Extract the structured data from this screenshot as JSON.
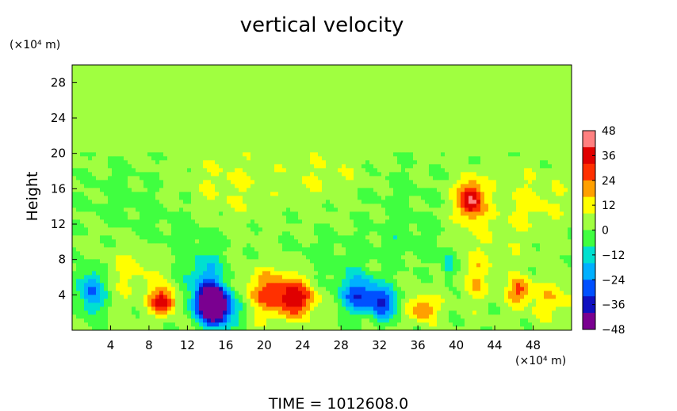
{
  "chart_data": {
    "type": "heatmap",
    "title": "vertical velocity",
    "ylabel": "Height",
    "x_unit": "(×10⁴ m)",
    "y_unit": "(×10⁴ m)",
    "xlim": [
      0,
      52
    ],
    "ylim": [
      0,
      30
    ],
    "x_ticks": [
      "4",
      "8",
      "12",
      "16",
      "20",
      "24",
      "28",
      "32",
      "36",
      "40",
      "44",
      "48"
    ],
    "y_ticks": [
      "4",
      "8",
      "12",
      "16",
      "20",
      "24",
      "28"
    ],
    "colorbar": {
      "range": [
        -48,
        48
      ],
      "ticks": [
        "48",
        "36",
        "24",
        "12",
        "0",
        "−12",
        "−24",
        "−36",
        "−48"
      ],
      "colors": [
        "#7a0090",
        "#1010c0",
        "#0050ff",
        "#00b0ff",
        "#00e0d0",
        "#40ff40",
        "#a0ff40",
        "#ffff00",
        "#ffa000",
        "#ff3000",
        "#e00000",
        "#ff8080"
      ]
    },
    "background_value": 2,
    "features": [
      {
        "x": 2.0,
        "y": 4.5,
        "sx": 1.0,
        "sy": 1.8,
        "v": -28
      },
      {
        "x": 9.5,
        "y": 3.3,
        "sx": 1.0,
        "sy": 1.0,
        "v": 34
      },
      {
        "x": 13.8,
        "y": 5.5,
        "sx": 1.6,
        "sy": 2.5,
        "v": -20
      },
      {
        "x": 14.5,
        "y": 3.0,
        "sx": 1.0,
        "sy": 1.4,
        "v": -48
      },
      {
        "x": 15.5,
        "y": 2.5,
        "sx": 1.5,
        "sy": 1.5,
        "v": -30
      },
      {
        "x": 21.5,
        "y": 4.2,
        "sx": 2.5,
        "sy": 1.8,
        "v": 28
      },
      {
        "x": 23.5,
        "y": 3.3,
        "sx": 1.2,
        "sy": 1.2,
        "v": 18
      },
      {
        "x": 30.0,
        "y": 4.0,
        "sx": 1.5,
        "sy": 1.5,
        "v": -32
      },
      {
        "x": 32.5,
        "y": 3.0,
        "sx": 1.0,
        "sy": 1.2,
        "v": -28
      },
      {
        "x": 36.5,
        "y": 2.5,
        "sx": 1.0,
        "sy": 1.0,
        "v": 24
      },
      {
        "x": 39.2,
        "y": 7.5,
        "sx": 0.5,
        "sy": 1.2,
        "v": -18
      },
      {
        "x": 41.5,
        "y": 14.8,
        "sx": 0.9,
        "sy": 1.5,
        "v": 40
      },
      {
        "x": 42.0,
        "y": 6.0,
        "sx": 1.0,
        "sy": 2.0,
        "v": 12
      },
      {
        "x": 46.5,
        "y": 4.5,
        "sx": 0.8,
        "sy": 1.0,
        "v": 24
      },
      {
        "x": 50.0,
        "y": 3.5,
        "sx": 2.0,
        "sy": 1.5,
        "v": 12
      },
      {
        "x": 6.5,
        "y": 7.0,
        "sx": 2.5,
        "sy": 2.5,
        "v": 8
      },
      {
        "x": 26.5,
        "y": 7.5,
        "sx": 3.0,
        "sy": 2.5,
        "v": -6
      },
      {
        "x": 35.0,
        "y": 10.0,
        "sx": 3.0,
        "sy": 2.0,
        "v": -6
      },
      {
        "x": 44.0,
        "y": 12.0,
        "sx": 3.5,
        "sy": 3.5,
        "v": 5
      },
      {
        "x": 16.0,
        "y": 16.5,
        "sx": 3.0,
        "sy": 2.5,
        "v": 7
      },
      {
        "x": 26.5,
        "y": 17.5,
        "sx": 3.0,
        "sy": 2.0,
        "v": 6
      },
      {
        "x": 5.0,
        "y": 15.0,
        "sx": 2.5,
        "sy": 3.0,
        "v": -5
      },
      {
        "x": 10.5,
        "y": 11.5,
        "sx": 3.0,
        "sy": 2.5,
        "v": -5
      },
      {
        "x": 48.5,
        "y": 15.0,
        "sx": 2.0,
        "sy": 2.0,
        "v": 7
      },
      {
        "x": 34.0,
        "y": 15.5,
        "sx": 3.0,
        "sy": 2.5,
        "v": -4
      }
    ]
  },
  "footer": {
    "time_label": "TIME  =  1012608.0"
  }
}
